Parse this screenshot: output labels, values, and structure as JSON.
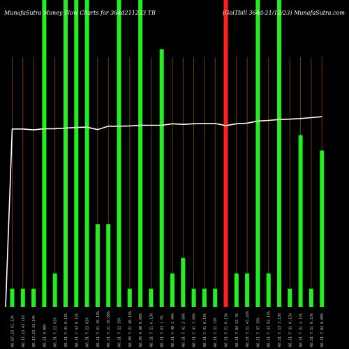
{
  "header": {
    "left": "MunafaSutra Money Flow Charts for 364d211223 TB",
    "right": "(GoiTbill 364d-21/12/23) MunafaSutra.com"
  },
  "colors": {
    "background": "#000000",
    "grid": "#8a4a0a",
    "up": "#22ee22",
    "down": "#ff2020",
    "price_line": "#ffffff",
    "tick": "#cccccc"
  },
  "chart_data": {
    "type": "bar",
    "title": "MunafaSutra Money Flow Charts for 364d211223 TB",
    "categories": [
      "08.07.23 61.13%",
      "08.17.23 43.11%",
      "08.17.23 43.14%",
      "08.21 0.00%",
      "08.31 7.22 82%",
      "08.31 7.41 0.13%",
      "08.31 7.43 0.13%",
      "08.31 7.22 82%",
      "08.31 7.21 49.13%",
      "08.31 7.21 38.00%",
      "08.31 7.22 39%",
      "08.30 7.21 49.13%",
      "08.30 4.00 0.00%",
      "08.31 7.21 6.13%",
      "08.31 7.43 1.9%",
      "08.31 7.40 3 44%",
      "08.31 7.41 2 50%",
      "08.31 7.41 3.60%",
      "08.31 7.41 0.13%",
      "08.31 7.21 13%",
      "08.31 7.21 0.13%",
      "08.31 7.04 22 3%",
      "08.31 7.21 43.22%",
      "08.31 7.37 39%",
      "08.31 7.33 82.13%",
      "08.31 7.23 3.13%",
      "08.31 7.31 0.13%",
      "08.31 7.21 4.13%",
      "08.31 7.21 0.13%",
      "08.31 7.04 0.00%"
    ],
    "values": [
      6,
      6,
      6,
      100,
      11,
      100,
      100,
      100,
      27,
      27,
      100,
      6,
      100,
      6,
      84,
      11,
      16,
      6,
      6,
      6,
      100,
      11,
      11,
      100,
      11,
      100,
      6,
      56,
      6,
      51
    ],
    "directions": [
      "up",
      "up",
      "up",
      "up",
      "up",
      "up",
      "up",
      "up",
      "up",
      "up",
      "up",
      "up",
      "up",
      "up",
      "up",
      "up",
      "up",
      "up",
      "up",
      "up",
      "down",
      "up",
      "up",
      "up",
      "up",
      "up",
      "up",
      "up",
      "up",
      "up"
    ],
    "price_line": [
      58,
      58,
      58,
      57.7,
      58.1,
      58.1,
      58.3,
      58.5,
      58.6,
      57.8,
      58.9,
      58.9,
      59.0,
      59.2,
      59.2,
      59.2,
      59.7,
      59.5,
      59.7,
      59.8,
      59.8,
      59.1,
      59.7,
      59.9,
      60.6,
      60.8,
      61.1,
      61.2,
      61.4,
      61.7,
      62.0
    ],
    "price_start": 1,
    "ylim": [
      0,
      100
    ],
    "price_ylim": [
      0,
      100
    ],
    "grid": true,
    "xlabel": "",
    "ylabel": ""
  }
}
